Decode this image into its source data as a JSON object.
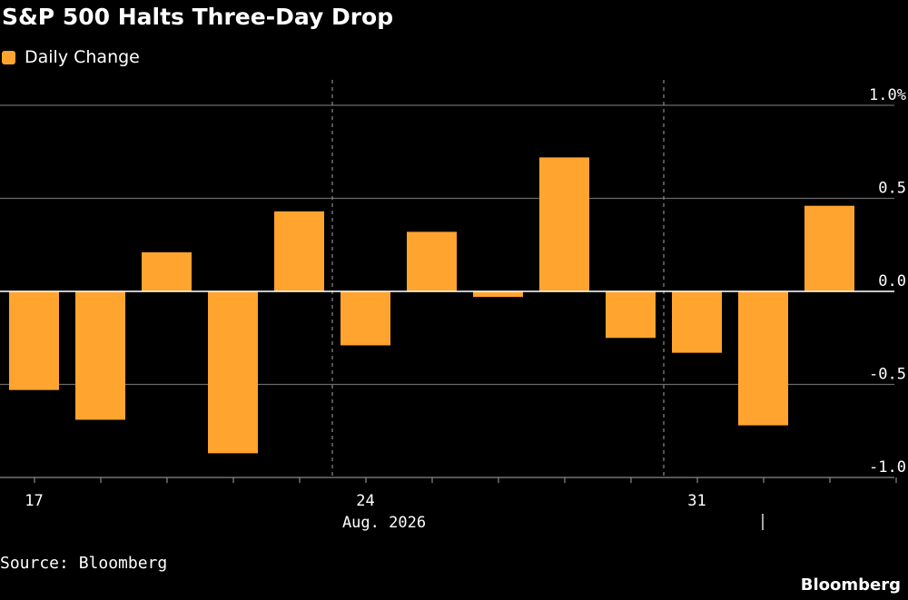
{
  "title": "S&P 500 Halts Three-Day Drop",
  "legend": {
    "label": "Daily Change",
    "color": "#ffa42f"
  },
  "source": "Source: Bloomberg",
  "brand": "Bloomberg",
  "chart_data": {
    "type": "bar",
    "title": "S&P 500 Halts Three-Day Drop",
    "series": [
      {
        "name": "Daily Change",
        "color": "#ffa42f",
        "points": [
          {
            "date": "2026-08-17",
            "value": -0.53
          },
          {
            "date": "2026-08-18",
            "value": -0.69
          },
          {
            "date": "2026-08-19",
            "value": 0.21
          },
          {
            "date": "2026-08-20",
            "value": -0.87
          },
          {
            "date": "2026-08-21",
            "value": 0.43
          },
          {
            "date": "2026-08-24",
            "value": -0.29
          },
          {
            "date": "2026-08-25",
            "value": 0.32
          },
          {
            "date": "2026-08-26",
            "value": -0.03
          },
          {
            "date": "2026-08-27",
            "value": 0.72
          },
          {
            "date": "2026-08-28",
            "value": -0.25
          },
          {
            "date": "2026-08-31",
            "value": -0.33
          },
          {
            "date": "2026-09-01",
            "value": -0.72
          },
          {
            "date": "2026-09-02",
            "value": 0.46
          }
        ]
      }
    ],
    "y_axis": {
      "min": -1.0,
      "max": 1.0,
      "ticks": [
        "1.0%",
        "0.5",
        "0.0",
        "-0.5",
        "-1.0"
      ],
      "position": "right",
      "grid": true
    },
    "x_axis": {
      "ticks": [
        "17",
        "24",
        "31"
      ],
      "sublabel": "Aug. 2026"
    }
  }
}
